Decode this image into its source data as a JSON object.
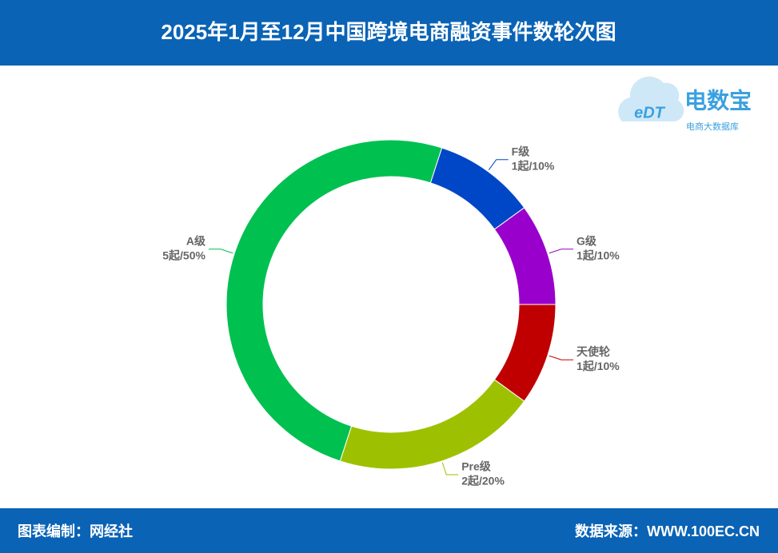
{
  "chart_data": {
    "type": "donut",
    "title": "2025年1月至12月中国跨境电商融资事件数轮次图",
    "categories": [
      "天使轮",
      "Pre级",
      "A级",
      "F级",
      "G级"
    ],
    "values": [
      1,
      2,
      5,
      1,
      1
    ],
    "value_labels": [
      "1起/10%",
      "2起/20%",
      "5起/50%",
      "1起/10%",
      "1起/10%"
    ],
    "colors": [
      "#c00000",
      "#9dc100",
      "#00c050",
      "#0047c8",
      "#9900cc"
    ]
  },
  "footer": {
    "left": "图表编制：网经社",
    "right": "数据来源：WWW.100EC.CN"
  },
  "logo": {
    "mark": "eDT",
    "name": "电数宝",
    "tagline": "电商大数据库"
  }
}
